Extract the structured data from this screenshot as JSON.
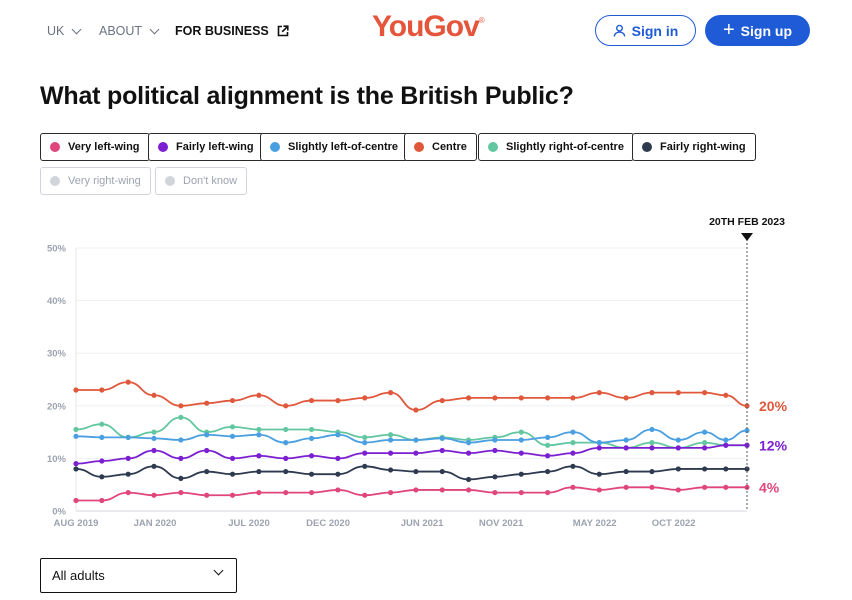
{
  "nav": {
    "uk_label": "UK",
    "about_label": "ABOUT",
    "business_label": "FOR BUSINESS",
    "logo_text": "YouGov",
    "logo_mark": "®",
    "signin_label": "Sign in",
    "signup_label": "Sign up"
  },
  "page_title": "What political alignment is the British Public?",
  "legend": [
    {
      "label": "Very left-wing",
      "color": "#e0457b",
      "active": true
    },
    {
      "label": "Fairly left-wing",
      "color": "#7b1fd1",
      "active": true
    },
    {
      "label": "Slightly left-of-centre",
      "color": "#4a9fe0",
      "active": true
    },
    {
      "label": "Centre",
      "color": "#e0583b",
      "active": true
    },
    {
      "label": "Slightly right-of-centre",
      "color": "#62c7a1",
      "active": true
    },
    {
      "label": "Fairly right-wing",
      "color": "#2d3a4f",
      "active": true
    },
    {
      "label": "Very right-wing",
      "color": "#d1d5db",
      "active": false
    },
    {
      "label": "Don't know",
      "color": "#d1d5db",
      "active": false
    }
  ],
  "filter": {
    "selected": "All adults"
  },
  "chart_data": {
    "type": "line",
    "title": "What political alignment is the British Public?",
    "ylim": [
      0,
      50
    ],
    "y_ticks": [
      "0%",
      "10%",
      "20%",
      "30%",
      "40%",
      "50%"
    ],
    "y_tick_values": [
      0,
      10,
      20,
      30,
      40,
      50
    ],
    "x_tick_labels": [
      "AUG 2019",
      "JAN 2020",
      "JUL 2020",
      "DEC 2020",
      "JUN 2021",
      "NOV 2021",
      "MAY 2022",
      "OCT 2022"
    ],
    "x_tick_dates": [
      "2019-08",
      "2020-01",
      "2020-07",
      "2020-12",
      "2021-06",
      "2021-11",
      "2022-05",
      "2022-10"
    ],
    "x": [
      "2019-08-01",
      "2019-09-20",
      "2019-11-10",
      "2019-12-30",
      "2020-02-20",
      "2020-04-10",
      "2020-05-30",
      "2020-07-20",
      "2020-09-10",
      "2020-10-30",
      "2020-12-20",
      "2021-02-10",
      "2021-04-01",
      "2021-05-20",
      "2021-07-10",
      "2021-08-30",
      "2021-10-20",
      "2021-12-10",
      "2022-01-30",
      "2022-03-20",
      "2022-05-10",
      "2022-07-01",
      "2022-08-20",
      "2022-10-10",
      "2022-11-30",
      "2023-01-10",
      "2023-02-20"
    ],
    "grid": "horizontal",
    "legend_position": "top",
    "marker": {
      "date": "2023-02-20",
      "label": "20TH FEB 2023"
    },
    "end_labels": [
      {
        "series": "Centre",
        "text": "20%"
      },
      {
        "series": "Fairly left-wing",
        "text": "12%"
      },
      {
        "series": "Very left-wing",
        "text": "4%"
      }
    ],
    "series": [
      {
        "name": "Centre",
        "color": "#e0583b",
        "values": [
          23,
          23,
          24.5,
          22,
          20,
          20.5,
          21,
          22,
          20,
          21,
          21,
          21.5,
          22.5,
          19.2,
          21,
          21.5,
          21.5,
          21.5,
          21.5,
          21.5,
          22.5,
          21.5,
          22.5,
          22.5,
          22.5,
          22,
          20
        ]
      },
      {
        "name": "Slightly right-of-centre",
        "color": "#62c7a1",
        "values": [
          15.5,
          16.5,
          14,
          15,
          17.8,
          15,
          16,
          15.5,
          15.5,
          15.5,
          15,
          14,
          14.5,
          13.5,
          14,
          13.5,
          14,
          15,
          12.5,
          13,
          13,
          12,
          13,
          12,
          13,
          12.5,
          12.5
        ]
      },
      {
        "name": "Slightly left-of-centre",
        "color": "#4a9fe0",
        "values": [
          14.2,
          14,
          14,
          13.8,
          13.5,
          14.5,
          14.2,
          14.5,
          13,
          13.8,
          14.5,
          13,
          13.5,
          13.5,
          13.8,
          13,
          13.5,
          13.5,
          14,
          15,
          13,
          13.5,
          15.5,
          13.5,
          15,
          13.5,
          15.3
        ]
      },
      {
        "name": "Fairly left-wing",
        "color": "#7b1fd1",
        "values": [
          9,
          9.5,
          10,
          11.5,
          10,
          11.5,
          10,
          10.5,
          10,
          10.5,
          10,
          11,
          11,
          11,
          11.5,
          11,
          11.5,
          11,
          10.5,
          11,
          12,
          12,
          12,
          12,
          12,
          12.5,
          12.5
        ]
      },
      {
        "name": "Fairly right-wing",
        "color": "#2d3a4f",
        "values": [
          8,
          6.5,
          7,
          8.5,
          6.2,
          7.5,
          7,
          7.5,
          7.5,
          7,
          7,
          8.5,
          7.8,
          7.5,
          7.5,
          6,
          6.5,
          7,
          7.5,
          8.5,
          7,
          7.5,
          7.5,
          8,
          8,
          8,
          8
        ]
      },
      {
        "name": "Very left-wing",
        "color": "#e0457b",
        "values": [
          2,
          2,
          3.5,
          3,
          3.5,
          3,
          3,
          3.5,
          3.5,
          3.5,
          4,
          3,
          3.5,
          4,
          4,
          4,
          3.5,
          3.5,
          3.5,
          4.5,
          4,
          4.5,
          4.5,
          4,
          4.5,
          4.5,
          4.5
        ]
      }
    ]
  }
}
